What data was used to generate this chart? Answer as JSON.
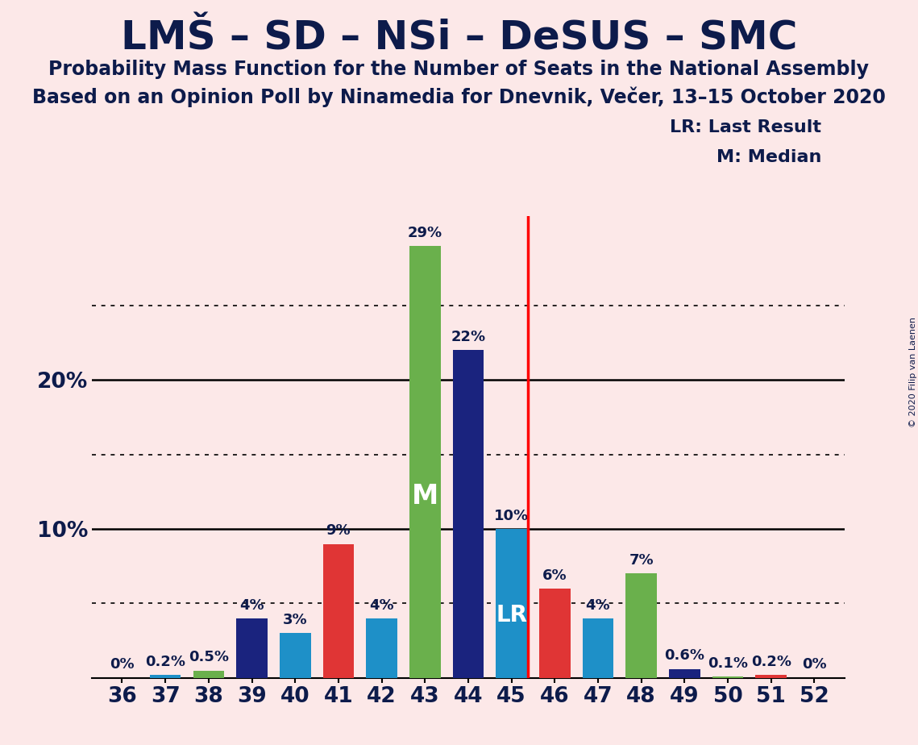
{
  "title": "LMŠ – SD – NSi – DeSUS – SMC",
  "subtitle1": "Probability Mass Function for the Number of Seats in the National Assembly",
  "subtitle2": "Based on an Opinion Poll by Ninamedia for Dnevnik, Večer, 13–15 October 2020",
  "copyright": "© 2020 Filip van Laenen",
  "background_color": "#fce8e8",
  "seats": [
    36,
    37,
    38,
    39,
    40,
    41,
    42,
    43,
    44,
    45,
    46,
    47,
    48,
    49,
    50,
    51,
    52
  ],
  "values": [
    0.0,
    0.2,
    0.5,
    4.0,
    3.0,
    9.0,
    4.0,
    29.0,
    22.0,
    10.0,
    6.0,
    4.0,
    7.0,
    0.6,
    0.1,
    0.2,
    0.0
  ],
  "bar_colors": [
    "#1a237e",
    "#1e90c8",
    "#6ab04c",
    "#1a237e",
    "#1e90c8",
    "#e03535",
    "#1e90c8",
    "#6ab04c",
    "#1a237e",
    "#1e90c8",
    "#e03535",
    "#1e90c8",
    "#6ab04c",
    "#1a237e",
    "#6ab04c",
    "#e03535",
    "#1a237e"
  ],
  "median_seat": 43,
  "lr_seat": 45,
  "lr_line_color": "#ff0000",
  "ylim": [
    0,
    31
  ],
  "dotted_lines": [
    5,
    15,
    25
  ],
  "solid_lines": [
    10,
    20
  ],
  "legend_lr": "LR: Last Result",
  "legend_m": "M: Median",
  "bar_label_fontsize": 13,
  "title_fontsize": 36,
  "subtitle_fontsize": 17,
  "axis_fontsize": 19,
  "axis_color": "#0d1b4b"
}
